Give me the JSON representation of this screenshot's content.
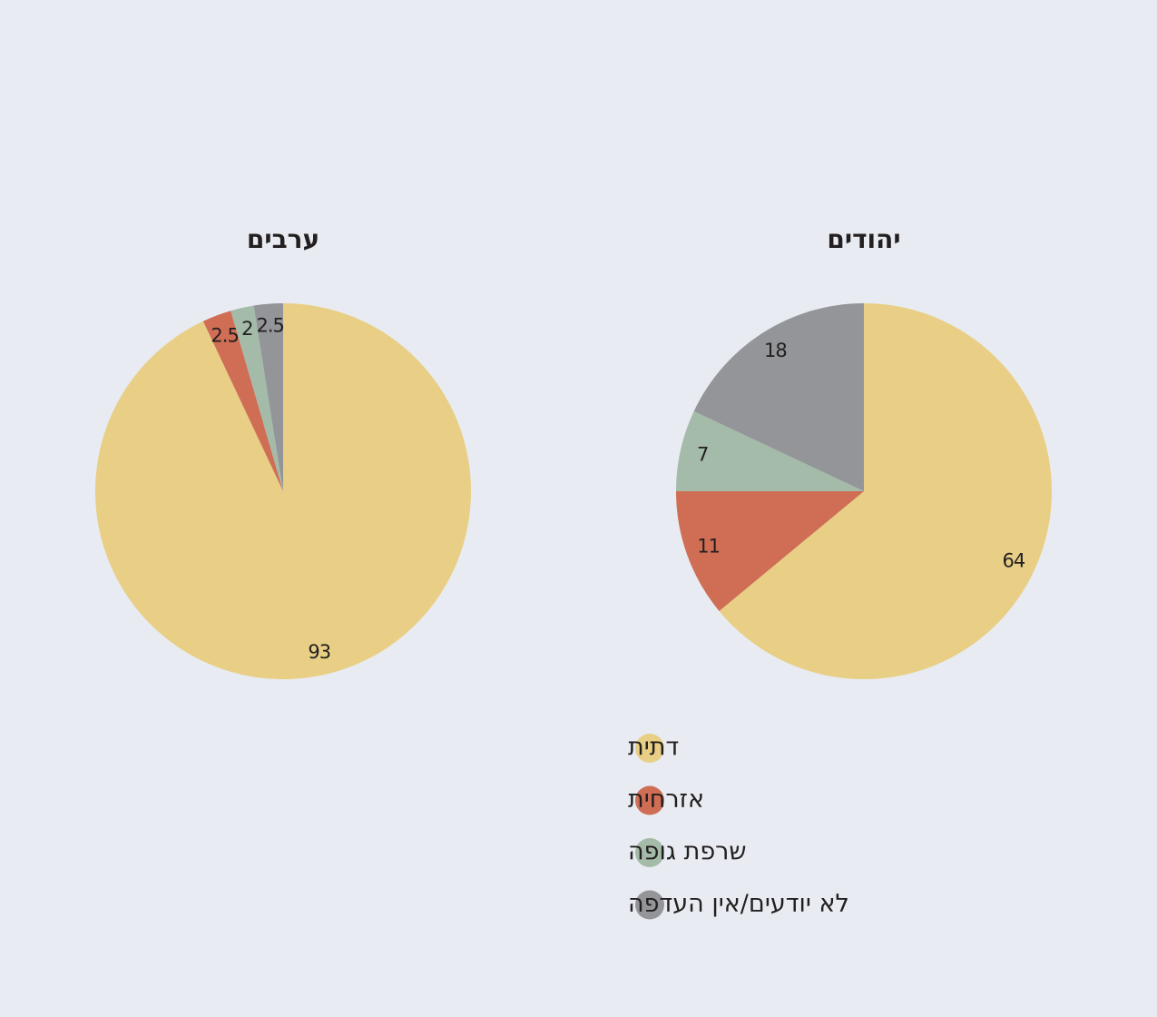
{
  "chart_data": [
    {
      "type": "pie",
      "title": "ערבים",
      "values": [
        93,
        2.5,
        2,
        2.5
      ]
    },
    {
      "type": "pie",
      "title": "יהודים",
      "values": [
        64,
        11,
        7,
        18
      ]
    }
  ],
  "legend": {
    "labels": [
      "דתית",
      "אזרחית",
      "שרפת גופה",
      "לא יודעים/אין העדפה"
    ],
    "colors": [
      "#e8cf85",
      "#cf6e55",
      "#a3bba8",
      "#939598"
    ]
  }
}
